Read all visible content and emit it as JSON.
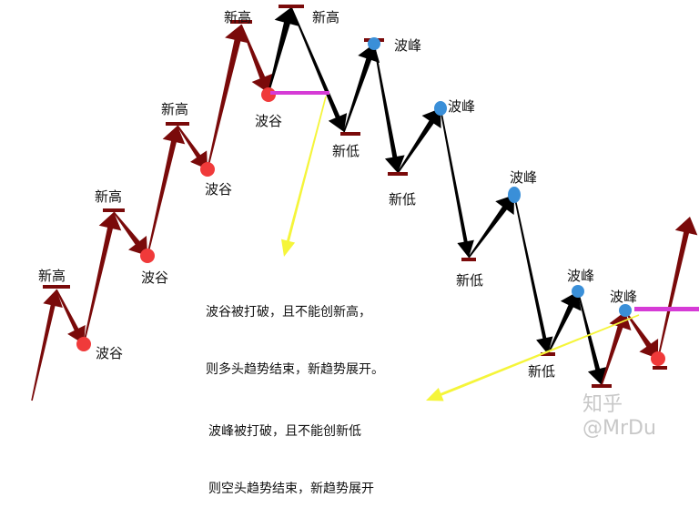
{
  "labels": {
    "new_high": "新高",
    "trough": "波谷",
    "new_low": "新低",
    "peak": "波峰"
  },
  "notes": {
    "uptrend_end_line1": "波谷被打破，且不能创新高，",
    "uptrend_end_line2": "则多头趋势结束，新趋势展开。",
    "downtrend_end_line1": "波峰被打破，且不能创新低",
    "downtrend_end_line2": "则空头趋势结束，新趋势展开"
  },
  "watermark": "知乎 @MrDu",
  "colors": {
    "uptrend": "#7a0a0a",
    "downtrend": "#000000",
    "trough_dot": "#f03a3a",
    "peak_dot": "#3a8fd8",
    "break_line": "#d63bd6",
    "pointer": "#f5f53a"
  }
}
